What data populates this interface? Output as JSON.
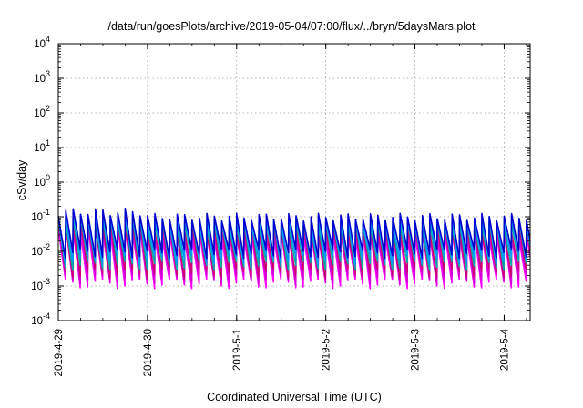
{
  "chart_data": {
    "type": "line",
    "title": "/data/run/goesPlots/archive/2019-05-04/07:00/flux/../bryn/5daysMars.plot",
    "xlabel": "Coordinated Universal Time (UTC)",
    "ylabel": "cSv/day",
    "y_scale": "log",
    "ylim": [
      0.0001,
      10000
    ],
    "y_ticks": [
      {
        "base": "10",
        "exp": "-4",
        "value": 0.0001
      },
      {
        "base": "10",
        "exp": "-3",
        "value": 0.001
      },
      {
        "base": "10",
        "exp": "-2",
        "value": 0.01
      },
      {
        "base": "10",
        "exp": "-1",
        "value": 0.1
      },
      {
        "base": "10",
        "exp": "0",
        "value": 1
      },
      {
        "base": "10",
        "exp": "1",
        "value": 10
      },
      {
        "base": "10",
        "exp": "2",
        "value": 100
      },
      {
        "base": "10",
        "exp": "3",
        "value": 1000
      },
      {
        "base": "10",
        "exp": "4",
        "value": 10000
      }
    ],
    "xlim": [
      "2019-04-29T00:00",
      "2019-05-04T07:00"
    ],
    "x_ticks": [
      {
        "label": "2019-4-29",
        "value": "2019-04-29T00:00"
      },
      {
        "label": "2019-4-30",
        "value": "2019-04-30T00:00"
      },
      {
        "label": "2019-5-1",
        "value": "2019-05-01T00:00"
      },
      {
        "label": "2019-5-2",
        "value": "2019-05-02T00:00"
      },
      {
        "label": "2019-5-3",
        "value": "2019-05-03T00:00"
      },
      {
        "label": "2019-5-4",
        "value": "2019-05-04T00:00"
      }
    ],
    "grid": true,
    "legend": "none",
    "cycle_hours": 2,
    "series": [
      {
        "color": "#ff00ff",
        "peak_before_apr30": 0.045,
        "peak_after_apr30": 0.03,
        "trough": 0.0012
      },
      {
        "color": "#d400d4",
        "peak_before_apr30": 0.055,
        "peak_after_apr30": 0.035,
        "trough": 0.0016
      },
      {
        "color": "#cc0077",
        "peak_before_apr30": 0.065,
        "peak_after_apr30": 0.045,
        "trough": 0.0024
      },
      {
        "color": "#00aaaa",
        "peak_before_apr30": 0.09,
        "peak_after_apr30": 0.065,
        "trough": 0.004
      },
      {
        "color": "#0099ff",
        "peak_before_apr30": 0.11,
        "peak_after_apr30": 0.08,
        "trough": 0.006
      },
      {
        "color": "#0000cc",
        "peak_before_apr30": 0.14,
        "peak_after_apr30": 0.1,
        "trough": 0.009
      }
    ]
  }
}
